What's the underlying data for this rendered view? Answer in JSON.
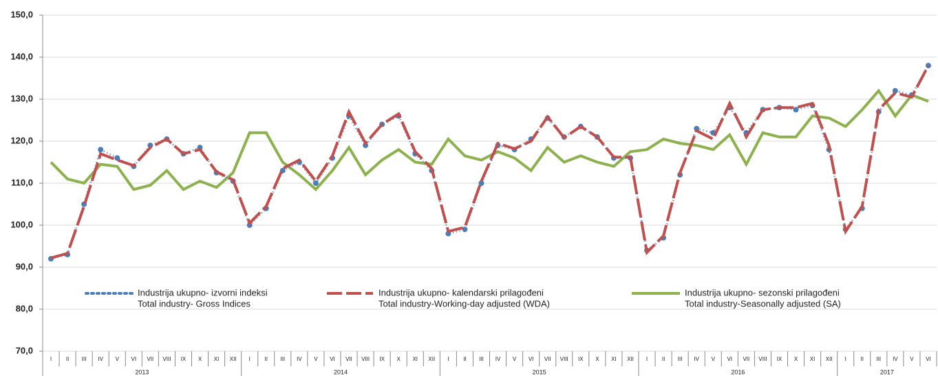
{
  "chart_data": {
    "type": "line",
    "categories": [
      "I",
      "II",
      "III",
      "IV",
      "V",
      "VI",
      "VII",
      "VIII",
      "IX",
      "X",
      "XI",
      "XII",
      "I",
      "II",
      "III",
      "IV",
      "V",
      "VI",
      "VII",
      "VIII",
      "IX",
      "X",
      "XI",
      "XII",
      "I",
      "II",
      "III",
      "IV",
      "V",
      "VI",
      "VII",
      "VIII",
      "IX",
      "X",
      "XI",
      "XII",
      "I",
      "II",
      "III",
      "IV",
      "V",
      "VI",
      "VII",
      "VIII",
      "IX",
      "X",
      "XI",
      "XII",
      "I",
      "II",
      "III",
      "IV",
      "V",
      "VI"
    ],
    "years": [
      "2013",
      "2014",
      "2015",
      "2016",
      "2017"
    ],
    "ylim": [
      70,
      150
    ],
    "yticks": [
      {
        "value": 70,
        "label": "70,0"
      },
      {
        "value": 80,
        "label": "80,0"
      },
      {
        "value": 90,
        "label": "90,0"
      },
      {
        "value": 100,
        "label": "100,0"
      },
      {
        "value": 110,
        "label": "110,0"
      },
      {
        "value": 120,
        "label": "120,0"
      },
      {
        "value": 130,
        "label": "130,0"
      },
      {
        "value": 140,
        "label": "140,0"
      },
      {
        "value": 150,
        "label": "150,0"
      }
    ],
    "grid": true,
    "series": [
      {
        "name": "Industrija ukupno- izvorni indeksi",
        "name_en": "Total industry- Gross Indices",
        "color": "#4a7ebb",
        "style": "dotted",
        "values": [
          92,
          93,
          105,
          118,
          116,
          114,
          119,
          120.5,
          117,
          118.5,
          112.5,
          110.5,
          100,
          104,
          113,
          115,
          110,
          116,
          126,
          119,
          124,
          126,
          117,
          113,
          98,
          99,
          110,
          119,
          118,
          120.5,
          125.5,
          121,
          123.5,
          121,
          116,
          116,
          94,
          97,
          112,
          123,
          122,
          128,
          122,
          127.5,
          128,
          127.5,
          128.5,
          118,
          99,
          104,
          127,
          132,
          131,
          138
        ]
      },
      {
        "name": "Industrija ukupno- kalendarski prilagođeni",
        "name_en": "Total industry-Working-day adjusted (WDA)",
        "color": "#c0504d",
        "style": "dashed",
        "values": [
          92.2,
          93.3,
          104.5,
          117,
          115.5,
          114.2,
          118.5,
          120.5,
          117,
          118,
          112.7,
          110.8,
          100.5,
          104.5,
          113.5,
          115.5,
          110.5,
          116.5,
          127,
          119.5,
          124,
          126.5,
          117.5,
          113.5,
          98.5,
          99.5,
          110.5,
          119.5,
          118.2,
          120,
          125.8,
          120.8,
          123.5,
          121,
          116.2,
          116.2,
          93.5,
          97.5,
          112.5,
          122.5,
          120.5,
          129,
          121,
          127.5,
          128,
          128,
          129,
          119,
          98.5,
          104.5,
          127.5,
          131.5,
          130.5,
          138
        ]
      },
      {
        "name": "Industrija ukupno- sezonski prilagođeni",
        "name_en": "Total industry-Seasonally adjusted (SA)",
        "color": "#8db14d",
        "style": "solid",
        "values": [
          115,
          111,
          110,
          114.5,
          114,
          108.5,
          109.5,
          113,
          108.5,
          110.5,
          109,
          112.5,
          122,
          122,
          115,
          112,
          108.5,
          113,
          118.5,
          112,
          115.5,
          118,
          115,
          114.5,
          120.5,
          116.5,
          115.5,
          117.5,
          116,
          113,
          118.5,
          115,
          116.5,
          115,
          114,
          117.5,
          118,
          120.5,
          119.5,
          119,
          118,
          121.5,
          114.5,
          122,
          121,
          121,
          126,
          125.5,
          123.5,
          127.5,
          132,
          126,
          131,
          129.5
        ]
      }
    ]
  }
}
